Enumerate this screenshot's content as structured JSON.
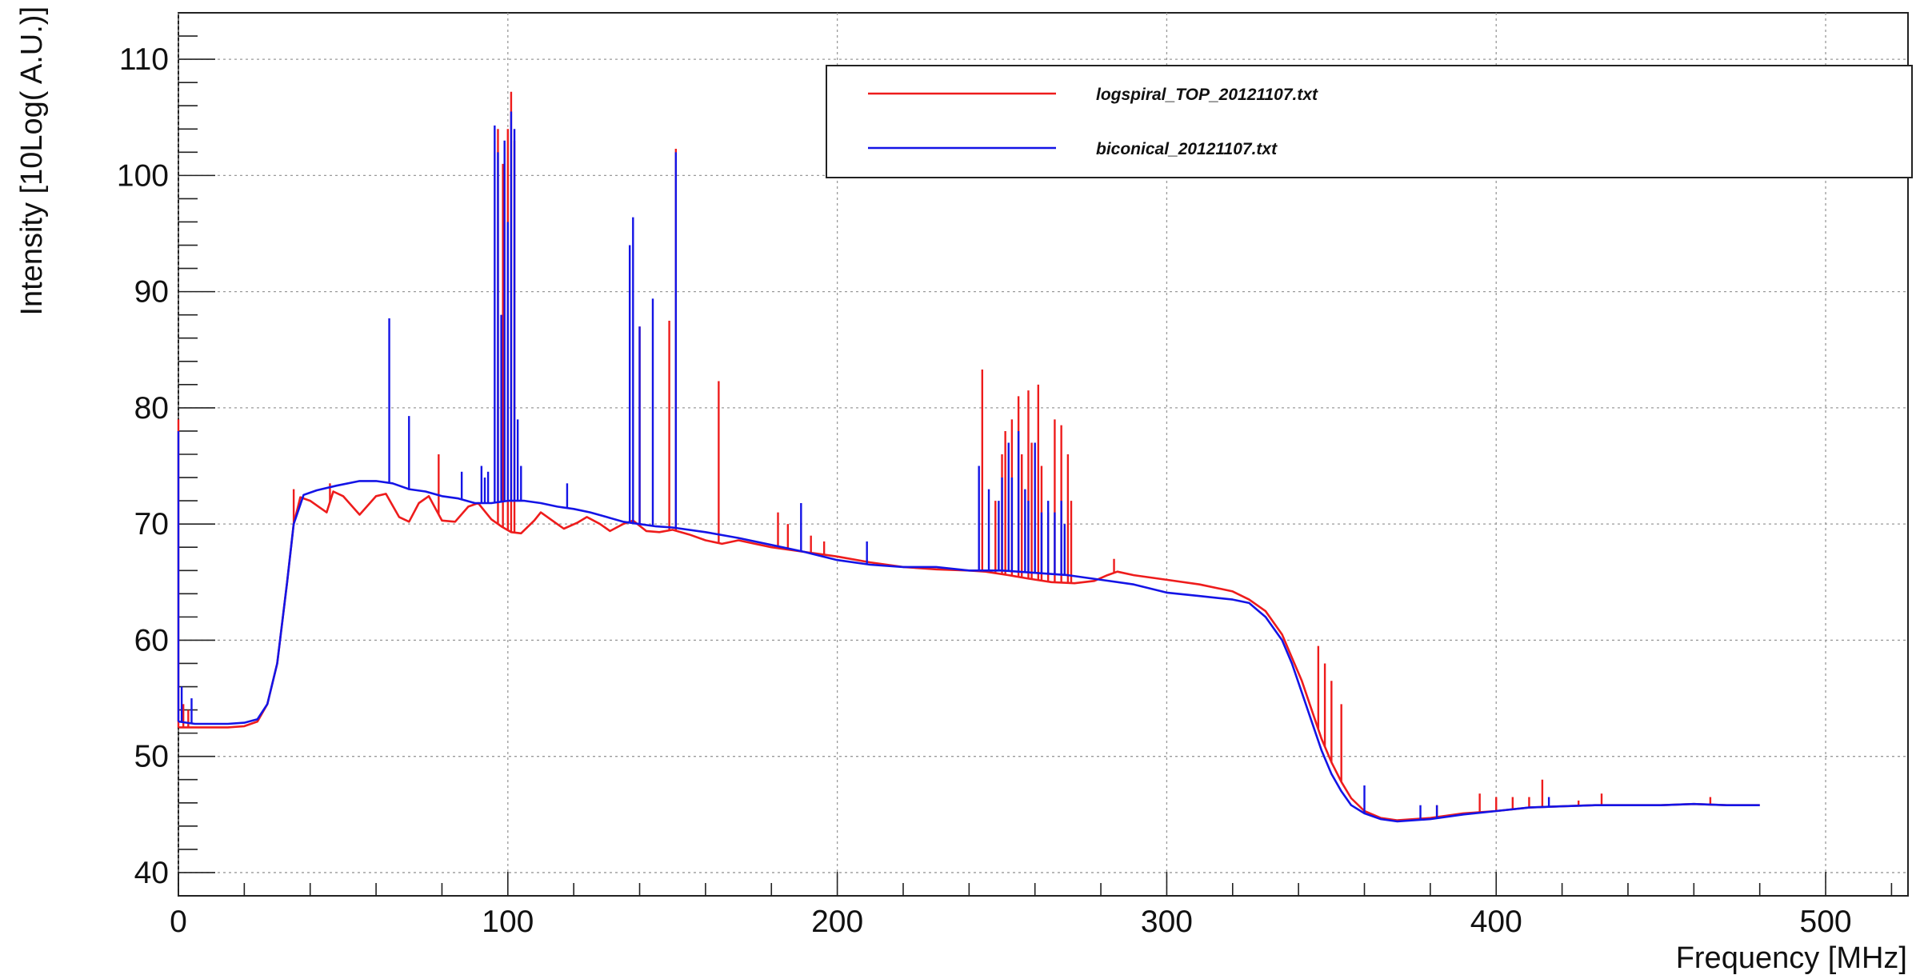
{
  "chart_data": {
    "type": "line",
    "xlabel": "Frequency [MHz]",
    "ylabel": "Intensity [10Log( A.U.)]",
    "xlim": [
      0,
      525
    ],
    "ylim": [
      38,
      114
    ],
    "x_ticks": [
      0,
      100,
      200,
      300,
      400,
      500
    ],
    "y_ticks": [
      40,
      50,
      60,
      70,
      80,
      90,
      100,
      110
    ],
    "grid": true,
    "legend_position": "top-right",
    "series": [
      {
        "name": "logspiral_TOP_20121107.txt",
        "color": "#ee1c1c",
        "base": [
          [
            0,
            52.5
          ],
          [
            5,
            52.5
          ],
          [
            10,
            52.5
          ],
          [
            15,
            52.5
          ],
          [
            20,
            52.6
          ],
          [
            24,
            53
          ],
          [
            27,
            54.5
          ],
          [
            30,
            58
          ],
          [
            33,
            65
          ],
          [
            35,
            70
          ],
          [
            37,
            72.3
          ],
          [
            40,
            72
          ],
          [
            45,
            71
          ],
          [
            47,
            72.8
          ],
          [
            50,
            72.4
          ],
          [
            55,
            70.8
          ],
          [
            60,
            72.4
          ],
          [
            63,
            72.6
          ],
          [
            67,
            70.6
          ],
          [
            70,
            70.2
          ],
          [
            73,
            71.8
          ],
          [
            76,
            72.4
          ],
          [
            80,
            70.3
          ],
          [
            84,
            70.2
          ],
          [
            88,
            71.5
          ],
          [
            91,
            71.8
          ],
          [
            95,
            70.4
          ],
          [
            98,
            69.8
          ],
          [
            101,
            69.3
          ],
          [
            104,
            69.2
          ],
          [
            108,
            70.3
          ],
          [
            110,
            71
          ],
          [
            114,
            70.2
          ],
          [
            117,
            69.6
          ],
          [
            121,
            70.1
          ],
          [
            124,
            70.6
          ],
          [
            128,
            70
          ],
          [
            131,
            69.4
          ],
          [
            135,
            70
          ],
          [
            138,
            70.3
          ],
          [
            142,
            69.4
          ],
          [
            146,
            69.3
          ],
          [
            150,
            69.5
          ],
          [
            155,
            69.1
          ],
          [
            160,
            68.6
          ],
          [
            165,
            68.3
          ],
          [
            170,
            68.6
          ],
          [
            180,
            68
          ],
          [
            190,
            67.6
          ],
          [
            200,
            67.2
          ],
          [
            210,
            66.7
          ],
          [
            220,
            66.3
          ],
          [
            230,
            66.1
          ],
          [
            240,
            66
          ],
          [
            245,
            65.9
          ],
          [
            252,
            65.6
          ],
          [
            258,
            65.3
          ],
          [
            265,
            65
          ],
          [
            272,
            64.9
          ],
          [
            278,
            65.1
          ],
          [
            282,
            65.6
          ],
          [
            285,
            65.9
          ],
          [
            290,
            65.6
          ],
          [
            300,
            65.2
          ],
          [
            310,
            64.8
          ],
          [
            320,
            64.2
          ],
          [
            325,
            63.5
          ],
          [
            330,
            62.5
          ],
          [
            335,
            60.5
          ],
          [
            338,
            58.5
          ],
          [
            341,
            56.5
          ],
          [
            344,
            54
          ],
          [
            347,
            51.5
          ],
          [
            350,
            49.5
          ],
          [
            353,
            47.8
          ],
          [
            356,
            46.4
          ],
          [
            360,
            45.3
          ],
          [
            365,
            44.7
          ],
          [
            370,
            44.5
          ],
          [
            380,
            44.7
          ],
          [
            390,
            45.1
          ],
          [
            400,
            45.3
          ],
          [
            410,
            45.6
          ],
          [
            420,
            45.7
          ],
          [
            430,
            45.8
          ],
          [
            440,
            45.8
          ],
          [
            450,
            45.8
          ],
          [
            460,
            45.9
          ],
          [
            470,
            45.8
          ],
          [
            480,
            45.8
          ]
        ],
        "spikes": [
          [
            0,
            79
          ],
          [
            1.5,
            54.5
          ],
          [
            3,
            54
          ],
          [
            35,
            73
          ],
          [
            46,
            73.5
          ],
          [
            79,
            76
          ],
          [
            97,
            104
          ],
          [
            98.5,
            101
          ],
          [
            100,
            104
          ],
          [
            101,
            107.2
          ],
          [
            102,
            103
          ],
          [
            140,
            87
          ],
          [
            149,
            87.5
          ],
          [
            151,
            102.3
          ],
          [
            164,
            82.3
          ],
          [
            182,
            71
          ],
          [
            185,
            70
          ],
          [
            192,
            69
          ],
          [
            196,
            68.5
          ],
          [
            244,
            83.3
          ],
          [
            248,
            72
          ],
          [
            250,
            76
          ],
          [
            251,
            78
          ],
          [
            253,
            79
          ],
          [
            255,
            81
          ],
          [
            256,
            76
          ],
          [
            258,
            81.5
          ],
          [
            259,
            77
          ],
          [
            261,
            82
          ],
          [
            262,
            75
          ],
          [
            264,
            71
          ],
          [
            266,
            79
          ],
          [
            268,
            78.5
          ],
          [
            270,
            76
          ],
          [
            271,
            72
          ],
          [
            284,
            67
          ],
          [
            346,
            59.5
          ],
          [
            348,
            58
          ],
          [
            350,
            56.5
          ],
          [
            353,
            54.5
          ],
          [
            382,
            45.8
          ],
          [
            395,
            46.8
          ],
          [
            400,
            46.5
          ],
          [
            405,
            46.5
          ],
          [
            410,
            46.5
          ],
          [
            414,
            48
          ],
          [
            425,
            46.2
          ],
          [
            432,
            46.8
          ],
          [
            465,
            46.5
          ]
        ]
      },
      {
        "name": "biconical_20121107.txt",
        "color": "#1414e6",
        "base": [
          [
            0,
            53
          ],
          [
            5,
            52.8
          ],
          [
            10,
            52.8
          ],
          [
            15,
            52.8
          ],
          [
            20,
            52.9
          ],
          [
            24,
            53.2
          ],
          [
            27,
            54.5
          ],
          [
            30,
            58
          ],
          [
            33,
            65
          ],
          [
            35,
            70
          ],
          [
            38,
            72.5
          ],
          [
            42,
            72.9
          ],
          [
            48,
            73.3
          ],
          [
            55,
            73.7
          ],
          [
            60,
            73.7
          ],
          [
            65,
            73.5
          ],
          [
            70,
            73
          ],
          [
            75,
            72.8
          ],
          [
            80,
            72.4
          ],
          [
            85,
            72.2
          ],
          [
            90,
            71.8
          ],
          [
            95,
            71.8
          ],
          [
            100,
            72
          ],
          [
            105,
            72
          ],
          [
            110,
            71.8
          ],
          [
            115,
            71.5
          ],
          [
            120,
            71.3
          ],
          [
            125,
            71
          ],
          [
            130,
            70.6
          ],
          [
            135,
            70.2
          ],
          [
            140,
            70
          ],
          [
            145,
            69.8
          ],
          [
            150,
            69.7
          ],
          [
            160,
            69.3
          ],
          [
            170,
            68.8
          ],
          [
            180,
            68.2
          ],
          [
            190,
            67.6
          ],
          [
            200,
            66.9
          ],
          [
            210,
            66.5
          ],
          [
            220,
            66.3
          ],
          [
            230,
            66.3
          ],
          [
            240,
            66
          ],
          [
            250,
            66
          ],
          [
            260,
            65.8
          ],
          [
            270,
            65.6
          ],
          [
            280,
            65.2
          ],
          [
            290,
            64.8
          ],
          [
            300,
            64.1
          ],
          [
            310,
            63.8
          ],
          [
            320,
            63.5
          ],
          [
            325,
            63.2
          ],
          [
            330,
            62
          ],
          [
            335,
            60
          ],
          [
            338,
            58
          ],
          [
            341,
            55.5
          ],
          [
            344,
            53
          ],
          [
            347,
            50.5
          ],
          [
            350,
            48.5
          ],
          [
            353,
            47
          ],
          [
            356,
            45.8
          ],
          [
            360,
            45.1
          ],
          [
            365,
            44.6
          ],
          [
            370,
            44.4
          ],
          [
            380,
            44.6
          ],
          [
            390,
            45
          ],
          [
            400,
            45.3
          ],
          [
            410,
            45.6
          ],
          [
            420,
            45.7
          ],
          [
            430,
            45.8
          ],
          [
            440,
            45.8
          ],
          [
            450,
            45.8
          ],
          [
            460,
            45.9
          ],
          [
            470,
            45.8
          ],
          [
            480,
            45.8
          ]
        ],
        "spikes": [
          [
            0,
            78
          ],
          [
            1,
            56
          ],
          [
            4,
            55
          ],
          [
            64,
            87.7
          ],
          [
            70,
            79.3
          ],
          [
            86,
            74.5
          ],
          [
            92,
            75
          ],
          [
            93,
            74
          ],
          [
            94,
            74.5
          ],
          [
            96,
            104.3
          ],
          [
            97,
            102
          ],
          [
            98,
            88
          ],
          [
            99,
            103
          ],
          [
            100,
            96
          ],
          [
            101,
            105.5
          ],
          [
            102,
            104
          ],
          [
            103,
            79
          ],
          [
            104,
            75
          ],
          [
            118,
            73.5
          ],
          [
            137,
            94
          ],
          [
            138,
            96.4
          ],
          [
            140,
            87
          ],
          [
            144,
            89.4
          ],
          [
            151,
            102
          ],
          [
            189,
            71.8
          ],
          [
            209,
            68.5
          ],
          [
            243,
            75
          ],
          [
            246,
            73
          ],
          [
            249,
            72
          ],
          [
            250,
            74
          ],
          [
            252,
            77
          ],
          [
            253,
            74
          ],
          [
            255,
            78
          ],
          [
            257,
            73
          ],
          [
            258,
            72
          ],
          [
            260,
            77
          ],
          [
            262,
            71
          ],
          [
            264,
            72
          ],
          [
            266,
            71
          ],
          [
            268,
            72
          ],
          [
            269,
            70
          ],
          [
            360,
            47.5
          ],
          [
            377,
            45.8
          ],
          [
            382,
            45.8
          ],
          [
            416,
            46.5
          ]
        ]
      }
    ]
  }
}
